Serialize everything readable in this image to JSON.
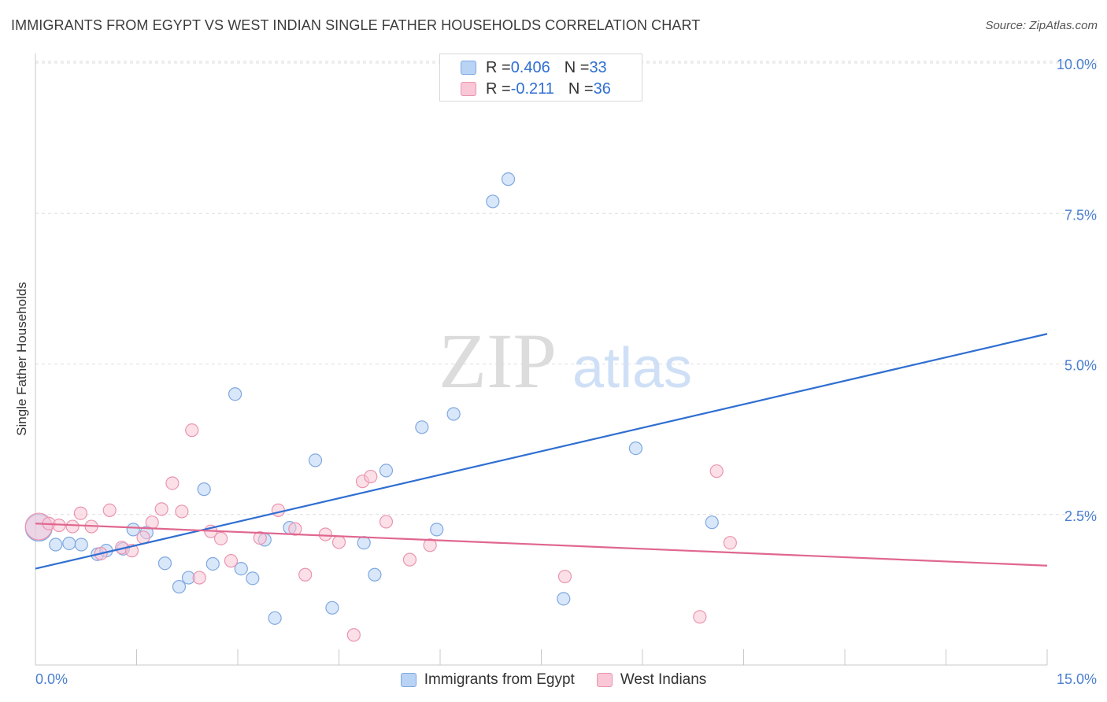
{
  "header": {
    "title": "IMMIGRANTS FROM EGYPT VS WEST INDIAN SINGLE FATHER HOUSEHOLDS CORRELATION CHART",
    "source": "Source: ZipAtlas.com"
  },
  "legend": {
    "series1": {
      "r_label": "R = ",
      "r_value": "0.406",
      "n_label": "N = ",
      "n_value": "33"
    },
    "series2": {
      "r_label": "R = ",
      "r_value": "-0.211",
      "n_label": "N = ",
      "n_value": "36"
    }
  },
  "watermark": {
    "zip": "ZIP",
    "atlas": "atlas"
  },
  "colors": {
    "blue_fill": "#b9d3f5",
    "blue_stroke": "#7fa8e0",
    "blue_line": "#2f6fd1",
    "pink_fill": "#f9c7d6",
    "pink_stroke": "#eb94b0",
    "pink_line": "#e0678f",
    "tick_text": "#4a7fd0"
  },
  "chart_data": {
    "type": "scatter",
    "title": "IMMIGRANTS FROM EGYPT VS WEST INDIAN SINGLE FATHER HOUSEHOLDS CORRELATION CHART",
    "xlabel": "",
    "ylabel": "Single Father Households",
    "xlim": [
      0,
      15
    ],
    "ylim": [
      0,
      10.5
    ],
    "x_tick_labels": [
      "0.0%",
      "15.0%"
    ],
    "y_ticks": [
      2.5,
      5.0,
      7.5,
      10.0
    ],
    "y_tick_labels": [
      "2.5%",
      "5.0%",
      "7.5%",
      "10.0%"
    ],
    "grid": true,
    "legend_position": "bottom",
    "series": [
      {
        "name": "Immigrants from Egypt",
        "color": "#2f6fd1",
        "trend": {
          "x": [
            0,
            15
          ],
          "y": [
            1.6,
            5.5
          ]
        },
        "points": [
          {
            "x": 0.05,
            "y": 2.28,
            "big": true
          },
          {
            "x": 0.3,
            "y": 2.0
          },
          {
            "x": 0.5,
            "y": 2.02
          },
          {
            "x": 0.68,
            "y": 2.0
          },
          {
            "x": 0.92,
            "y": 1.84
          },
          {
            "x": 1.05,
            "y": 1.9
          },
          {
            "x": 1.3,
            "y": 1.93
          },
          {
            "x": 1.45,
            "y": 2.25
          },
          {
            "x": 1.65,
            "y": 2.2
          },
          {
            "x": 1.92,
            "y": 1.69
          },
          {
            "x": 2.13,
            "y": 1.3
          },
          {
            "x": 2.27,
            "y": 1.45
          },
          {
            "x": 2.5,
            "y": 2.92
          },
          {
            "x": 2.63,
            "y": 1.68
          },
          {
            "x": 2.96,
            "y": 4.5
          },
          {
            "x": 3.05,
            "y": 1.6
          },
          {
            "x": 3.22,
            "y": 1.44
          },
          {
            "x": 3.4,
            "y": 2.08
          },
          {
            "x": 3.55,
            "y": 0.78
          },
          {
            "x": 3.77,
            "y": 2.28
          },
          {
            "x": 4.15,
            "y": 3.4
          },
          {
            "x": 4.4,
            "y": 0.95
          },
          {
            "x": 4.87,
            "y": 2.03
          },
          {
            "x": 5.03,
            "y": 1.5
          },
          {
            "x": 5.2,
            "y": 3.23
          },
          {
            "x": 5.73,
            "y": 3.95
          },
          {
            "x": 5.95,
            "y": 2.25
          },
          {
            "x": 6.2,
            "y": 4.17
          },
          {
            "x": 6.78,
            "y": 7.7
          },
          {
            "x": 7.01,
            "y": 8.07
          },
          {
            "x": 7.83,
            "y": 1.1
          },
          {
            "x": 8.9,
            "y": 3.6
          },
          {
            "x": 10.03,
            "y": 2.37
          }
        ]
      },
      {
        "name": "West Indians",
        "color": "#e0678f",
        "trend": {
          "x": [
            0,
            15
          ],
          "y": [
            2.35,
            1.65
          ]
        },
        "points": [
          {
            "x": 0.05,
            "y": 2.3,
            "big": true
          },
          {
            "x": 0.2,
            "y": 2.35
          },
          {
            "x": 0.35,
            "y": 2.32
          },
          {
            "x": 0.55,
            "y": 2.3
          },
          {
            "x": 0.67,
            "y": 2.52
          },
          {
            "x": 0.83,
            "y": 2.3
          },
          {
            "x": 0.97,
            "y": 1.85
          },
          {
            "x": 1.1,
            "y": 2.57
          },
          {
            "x": 1.28,
            "y": 1.95
          },
          {
            "x": 1.43,
            "y": 1.9
          },
          {
            "x": 1.6,
            "y": 2.12
          },
          {
            "x": 1.73,
            "y": 2.37
          },
          {
            "x": 1.87,
            "y": 2.59
          },
          {
            "x": 2.03,
            "y": 3.02
          },
          {
            "x": 2.17,
            "y": 2.55
          },
          {
            "x": 2.32,
            "y": 3.9
          },
          {
            "x": 2.43,
            "y": 1.45
          },
          {
            "x": 2.6,
            "y": 2.22
          },
          {
            "x": 2.75,
            "y": 2.1
          },
          {
            "x": 2.9,
            "y": 1.73
          },
          {
            "x": 3.33,
            "y": 2.11
          },
          {
            "x": 3.6,
            "y": 2.57
          },
          {
            "x": 3.85,
            "y": 2.26
          },
          {
            "x": 4.0,
            "y": 1.5
          },
          {
            "x": 4.3,
            "y": 2.17
          },
          {
            "x": 4.5,
            "y": 2.04
          },
          {
            "x": 4.72,
            "y": 0.5
          },
          {
            "x": 4.85,
            "y": 3.05
          },
          {
            "x": 4.97,
            "y": 3.13
          },
          {
            "x": 5.2,
            "y": 2.38
          },
          {
            "x": 5.55,
            "y": 1.75
          },
          {
            "x": 5.85,
            "y": 1.99
          },
          {
            "x": 7.85,
            "y": 1.47
          },
          {
            "x": 9.85,
            "y": 0.8
          },
          {
            "x": 10.1,
            "y": 3.22
          },
          {
            "x": 10.3,
            "y": 2.03
          }
        ]
      }
    ]
  }
}
